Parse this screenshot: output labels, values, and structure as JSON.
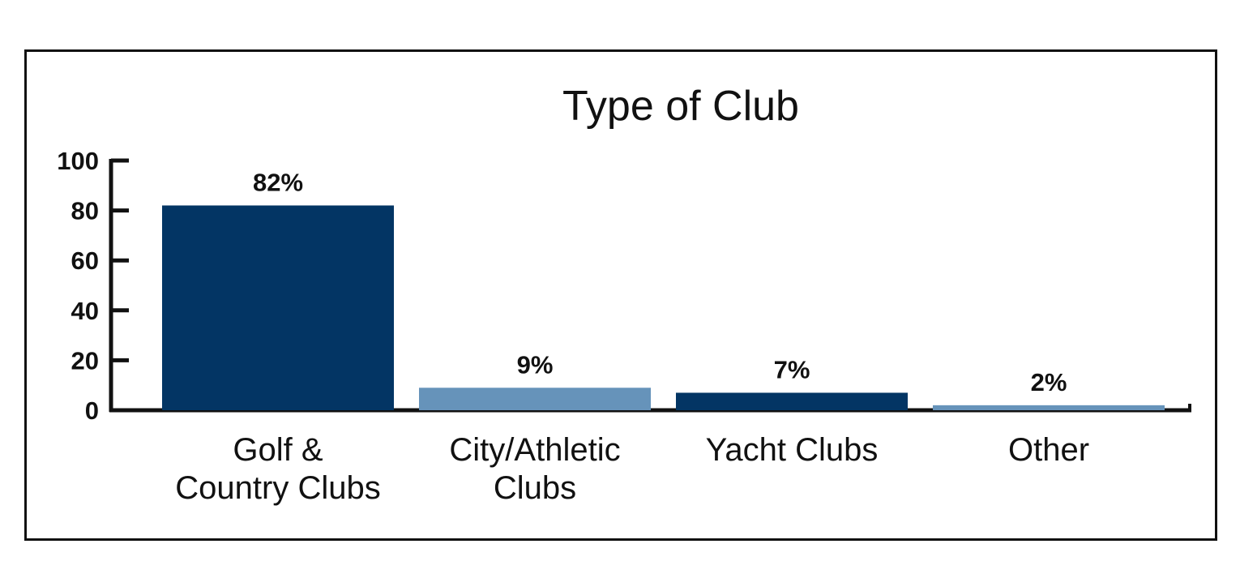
{
  "chart_data": {
    "type": "bar",
    "title": "Type of Club",
    "xlabel": "",
    "ylabel": "",
    "ylim": [
      0,
      100
    ],
    "yticks": [
      0,
      20,
      40,
      60,
      80,
      100
    ],
    "grid": false,
    "categories": [
      [
        "Golf &",
        "Country Clubs"
      ],
      [
        "City/Athletic",
        "Clubs"
      ],
      [
        "Yacht Clubs"
      ],
      [
        "Other"
      ]
    ],
    "values": [
      82,
      9,
      7,
      2
    ],
    "data_labels": [
      "82%",
      "9%",
      "7%",
      "2%"
    ],
    "colors": [
      "#033564",
      "#6693ba",
      "#033564",
      "#6693ba"
    ]
  }
}
